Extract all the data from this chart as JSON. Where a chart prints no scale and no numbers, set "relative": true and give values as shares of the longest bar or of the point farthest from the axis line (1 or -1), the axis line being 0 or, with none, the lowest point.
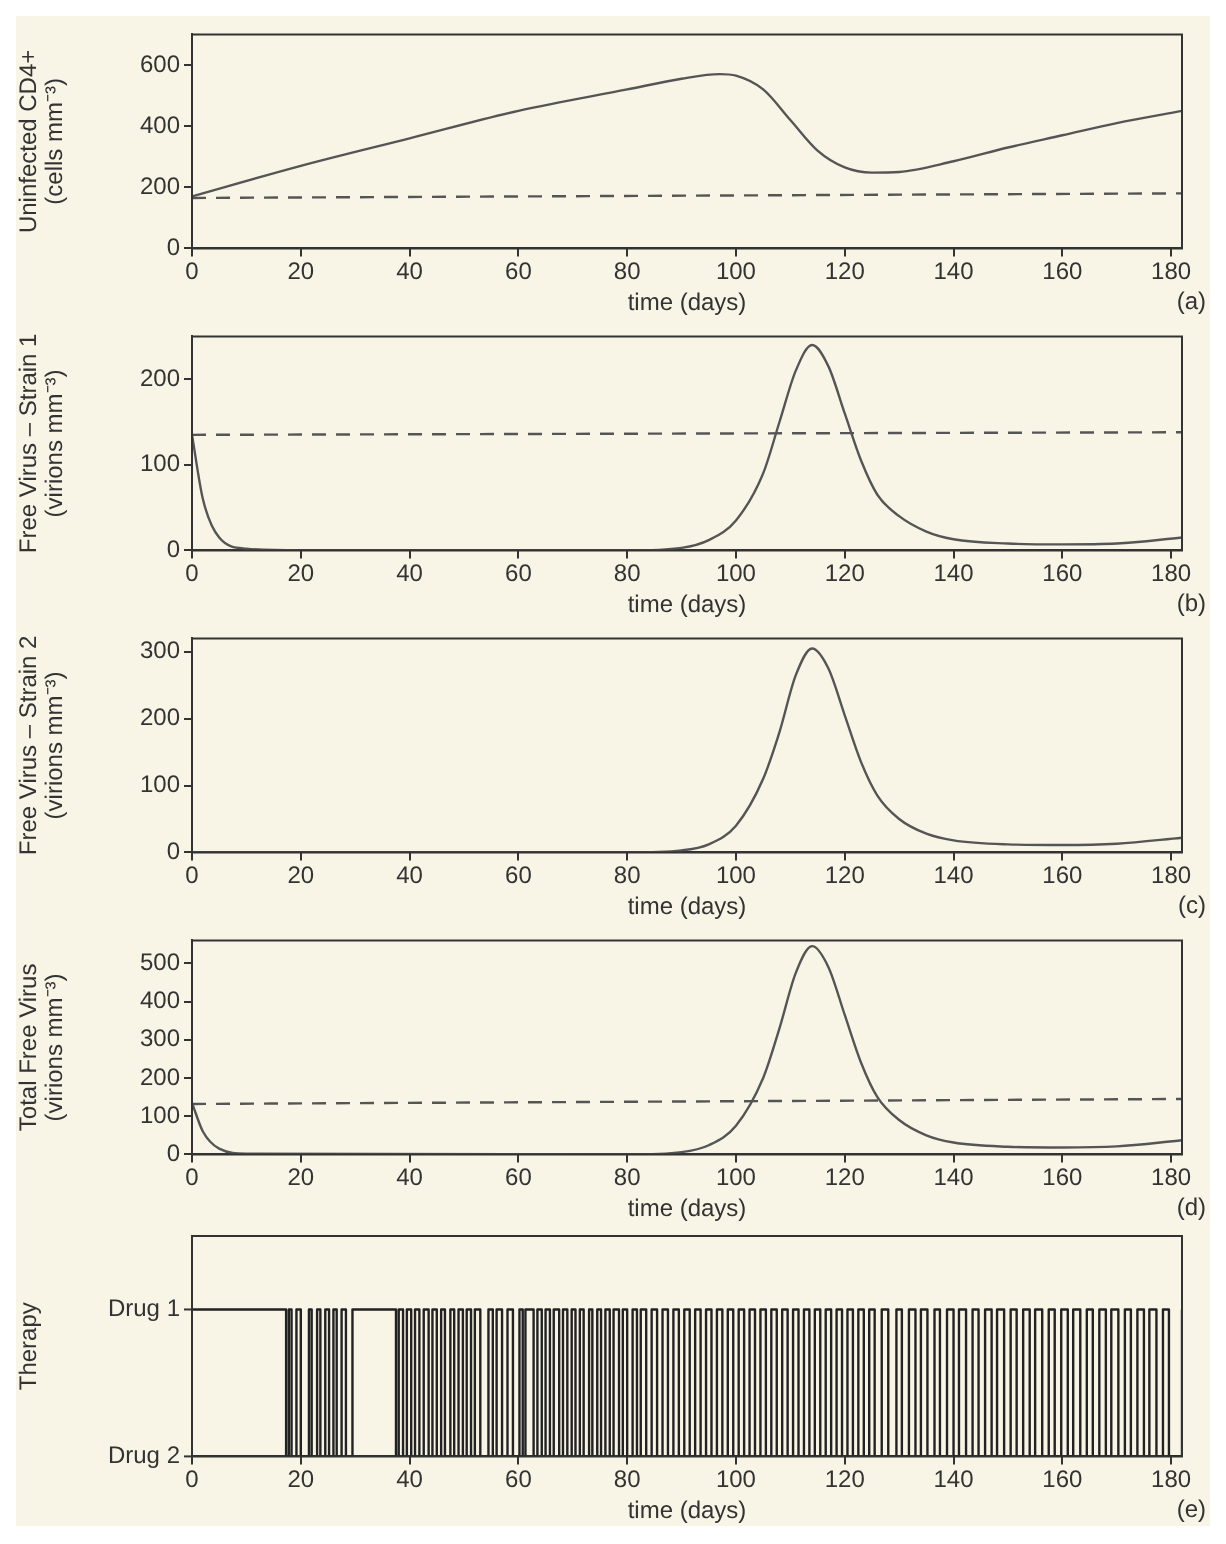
{
  "chart_data": [
    {
      "type": "line",
      "xlabel": "time (days)",
      "ylabel": "Uninfected CD4+\n(cells mm⁻³)",
      "annotations": [
        "(a)"
      ],
      "xlim": [
        0,
        182
      ],
      "xticks": [
        0,
        20,
        40,
        60,
        80,
        100,
        120,
        140,
        160,
        180
      ],
      "ylim": [
        0,
        700
      ],
      "yticks": [
        0,
        200,
        400,
        600
      ],
      "series": [
        {
          "color": "#555555",
          "x": [
            0,
            20,
            40,
            60,
            80,
            90,
            97,
            100,
            105,
            110,
            115,
            120,
            125,
            130,
            140,
            150,
            160,
            170,
            182
          ],
          "values": [
            170,
            270,
            360,
            450,
            520,
            555,
            570,
            565,
            520,
            420,
            320,
            265,
            248,
            250,
            285,
            330,
            370,
            410,
            450
          ]
        },
        {
          "color": "#555555",
          "line_style": "dashed",
          "x": [
            0,
            182
          ],
          "values": [
            165,
            180
          ]
        }
      ]
    },
    {
      "type": "line",
      "xlabel": "time (days)",
      "ylabel": "Free Virus – Strain 1\n(virions mm⁻³)",
      "annotations": [
        "(b)"
      ],
      "xlim": [
        0,
        182
      ],
      "xticks": [
        0,
        20,
        40,
        60,
        80,
        100,
        120,
        140,
        160,
        180
      ],
      "ylim": [
        0,
        250
      ],
      "yticks": [
        0,
        100,
        200
      ],
      "series": [
        {
          "color": "#555555",
          "x": [
            0,
            2,
            5,
            10,
            20,
            80,
            90,
            95,
            100,
            105,
            108,
            111,
            114,
            117,
            120,
            123,
            126,
            130,
            135,
            140,
            150,
            160,
            170,
            182
          ],
          "values": [
            135,
            60,
            15,
            2,
            0,
            0,
            3,
            12,
            35,
            90,
            150,
            210,
            240,
            215,
            160,
            105,
            65,
            40,
            22,
            13,
            8,
            7,
            8,
            15
          ]
        },
        {
          "color": "#555555",
          "line_style": "dashed",
          "x": [
            0,
            182
          ],
          "values": [
            135,
            138
          ]
        }
      ]
    },
    {
      "type": "line",
      "xlabel": "time (days)",
      "ylabel": "Free Virus – Strain 2\n(virions mm⁻³)",
      "annotations": [
        "(c)"
      ],
      "xlim": [
        0,
        182
      ],
      "xticks": [
        0,
        20,
        40,
        60,
        80,
        100,
        120,
        140,
        160,
        180
      ],
      "ylim": [
        0,
        320
      ],
      "yticks": [
        0,
        100,
        200,
        300
      ],
      "series": [
        {
          "color": "#555555",
          "x": [
            0,
            80,
            90,
            95,
            100,
            105,
            108,
            111,
            114,
            117,
            120,
            123,
            126,
            130,
            135,
            140,
            150,
            160,
            170,
            182
          ],
          "values": [
            0,
            0,
            3,
            12,
            40,
            110,
            180,
            265,
            305,
            275,
            205,
            135,
            85,
            50,
            28,
            18,
            12,
            11,
            13,
            22
          ]
        }
      ]
    },
    {
      "type": "line",
      "xlabel": "time (days)",
      "ylabel": "Total Free Virus\n(virions mm⁻³)",
      "annotations": [
        "(d)"
      ],
      "xlim": [
        0,
        182
      ],
      "xticks": [
        0,
        20,
        40,
        60,
        80,
        100,
        120,
        140,
        160,
        180
      ],
      "ylim": [
        0,
        560
      ],
      "yticks": [
        0,
        100,
        200,
        300,
        400,
        500
      ],
      "series": [
        {
          "color": "#555555",
          "x": [
            0,
            2,
            5,
            10,
            80,
            90,
            95,
            100,
            105,
            108,
            111,
            114,
            117,
            120,
            123,
            126,
            130,
            135,
            140,
            150,
            160,
            170,
            182
          ],
          "values": [
            135,
            60,
            15,
            2,
            0,
            6,
            24,
            75,
            200,
            330,
            475,
            545,
            490,
            365,
            240,
            150,
            90,
            50,
            31,
            20,
            18,
            21,
            37
          ]
        },
        {
          "color": "#555555",
          "line_style": "dashed",
          "x": [
            0,
            182
          ],
          "values": [
            132,
            145
          ]
        }
      ]
    },
    {
      "type": "step",
      "relative": true,
      "xlabel": "time (days)",
      "ylabel": "Therapy",
      "annotations": [
        "(e)",
        "Drug 1",
        "Drug 2"
      ],
      "xlim": [
        0,
        182
      ],
      "xticks": [
        0,
        20,
        40,
        60,
        80,
        100,
        120,
        140,
        160,
        180
      ],
      "series": [
        {
          "color": "#222222",
          "x": [
            0,
            17.3,
            17.8,
            18.3,
            19.2,
            20,
            21.5,
            22,
            23,
            23.6,
            24.5,
            25.2,
            26,
            26.6,
            27.5,
            28.3,
            29.5,
            37.5,
            38,
            38.8,
            39.5,
            40.3,
            41,
            41.8,
            42.6,
            43.5,
            44.2,
            45,
            45.8,
            46.5,
            47.5,
            48.2,
            49,
            49.8,
            50.5,
            51.3,
            52,
            53,
            54.5,
            55.3,
            56,
            57,
            58,
            59,
            60.2,
            60.8,
            61.3,
            62.8,
            63.5,
            64.3,
            65,
            65.8,
            66.5,
            67.5,
            68.2,
            69,
            69.8,
            70.5,
            71.3,
            72,
            73,
            73.6,
            74.5,
            75.2,
            76,
            76.8,
            77.5,
            78.5,
            79.2,
            80,
            81,
            81.8,
            82.5,
            83.5,
            84.5,
            85.5,
            86.5,
            87.5,
            88.5,
            89.5,
            90.5,
            91.5,
            92.5,
            93.5,
            94.5,
            95.5,
            96.5,
            97.5,
            98.5,
            99.5,
            100.5,
            101.5,
            102.5,
            103.5,
            104.5,
            105.5,
            106.5,
            107.5,
            108.5,
            109.5,
            110.5,
            111.5,
            112.5,
            113.5,
            114.5,
            115.5,
            116.5,
            117.5,
            118.5,
            119.5,
            120.5,
            121.5,
            122.5,
            123.5,
            124.5,
            125.5,
            126.8,
            128,
            129.5,
            130.5,
            131.8,
            133,
            134,
            135.2,
            136.5,
            137.5,
            138.8,
            140,
            141,
            142.3,
            143.5,
            144.6,
            145.8,
            147,
            148,
            149.3,
            150.5,
            151.6,
            152.8,
            154,
            155,
            156.3,
            157.5,
            158.6,
            159.8,
            161,
            162,
            163.3,
            164.5,
            165.6,
            166.8,
            168,
            169,
            170.3,
            171.5,
            172.6,
            173.8,
            175,
            176,
            177.3,
            178.5,
            179.6,
            182
          ],
          "values": [
            1,
            0,
            1,
            0,
            1,
            0,
            1,
            0,
            1,
            0,
            1,
            0,
            1,
            0,
            1,
            0,
            1,
            0,
            1,
            0,
            1,
            0,
            1,
            0,
            1,
            0,
            1,
            0,
            1,
            0,
            1,
            0,
            1,
            0,
            1,
            0,
            1,
            0,
            1,
            0,
            1,
            0,
            1,
            0,
            1,
            0,
            1,
            0,
            1,
            0,
            1,
            0,
            1,
            0,
            1,
            0,
            1,
            0,
            1,
            0,
            1,
            0,
            1,
            0,
            1,
            0,
            1,
            0,
            1,
            0,
            1,
            0,
            1,
            0,
            1,
            0,
            1,
            0,
            1,
            0,
            1,
            0,
            1,
            0,
            1,
            0,
            1,
            0,
            1,
            0,
            1,
            0,
            1,
            0,
            1,
            0,
            1,
            0,
            1,
            0,
            1,
            0,
            1,
            0,
            1,
            0,
            1,
            0,
            1,
            0,
            1,
            0,
            1,
            0,
            1,
            0,
            1,
            0,
            1,
            0,
            1,
            0,
            1,
            0,
            1,
            0,
            1,
            0,
            1,
            0,
            1,
            0,
            1,
            0,
            1,
            0,
            1,
            0,
            1,
            0,
            1,
            0,
            1,
            0,
            1,
            0,
            1,
            0,
            1,
            0,
            1,
            0,
            1,
            0,
            1,
            0,
            1,
            0,
            1,
            0,
            1,
            0,
            1
          ]
        }
      ]
    }
  ]
}
